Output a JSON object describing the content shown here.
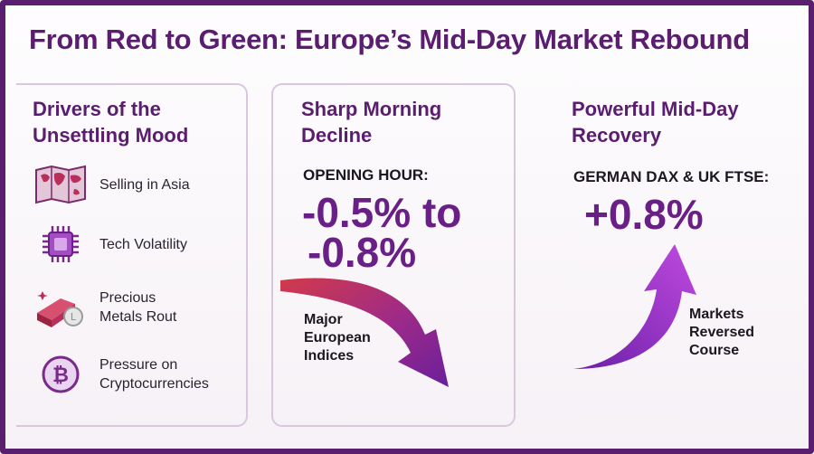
{
  "title": "From Red to Green: Europe’s Mid-Day Market Rebound",
  "colors": {
    "accent": "#5b1d6f",
    "purple": "#6a1f86",
    "red": "#c42d4a"
  },
  "drivers": {
    "heading_line1": "Drivers of the",
    "heading_line2": "Unsettling Mood",
    "items": [
      {
        "icon": "map-icon",
        "label_line1": "Selling in Asia",
        "label_line2": ""
      },
      {
        "icon": "chip-icon",
        "label_line1": "Tech Volatility",
        "label_line2": ""
      },
      {
        "icon": "gold-bars-icon",
        "label_line1": "Precious",
        "label_line2": "Metals Rout"
      },
      {
        "icon": "bitcoin-icon",
        "label_line1": "Pressure on",
        "label_line2": "Cryptocurrencies"
      }
    ]
  },
  "decline": {
    "heading_line1": "Sharp Morning",
    "heading_line2": "Decline",
    "label": "OPENING HOUR:",
    "value_line1": "-0.5% to",
    "value_line2": "-0.8%",
    "caption_line1": "Major",
    "caption_line2": "European",
    "caption_line3": "Indices"
  },
  "recovery": {
    "heading_line1": "Powerful Mid-Day",
    "heading_line2": "Recovery",
    "label": "GERMAN DAX & UK FTSE:",
    "value": "+0.8%",
    "caption_line1": "Markets",
    "caption_line2": "Reversed",
    "caption_line3": "Course"
  }
}
